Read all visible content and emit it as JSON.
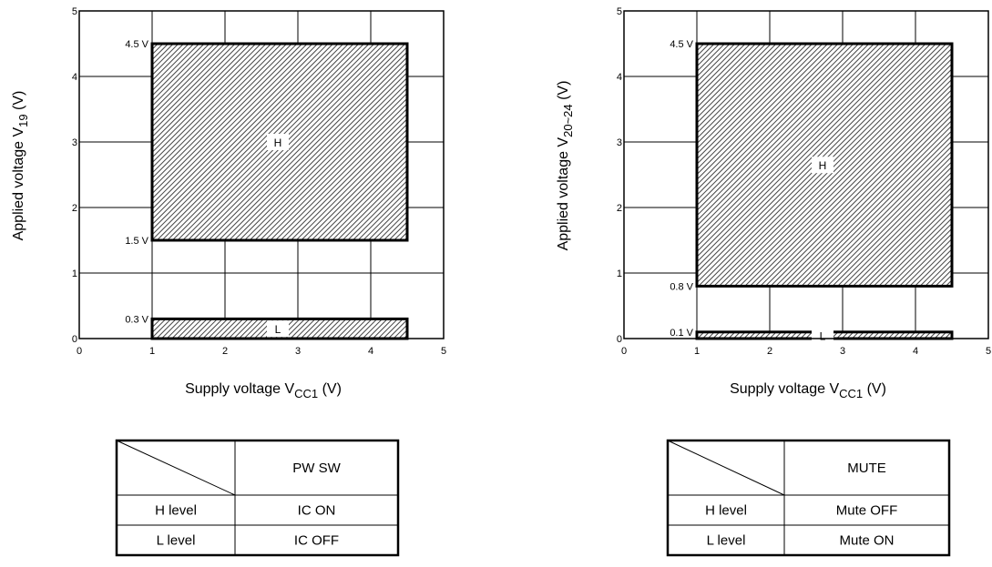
{
  "chart_data": [
    {
      "type": "area",
      "title": "",
      "xlabel": {
        "text": "Supply voltage",
        "symbol": "V",
        "subscript": "CC1",
        "unit": "(V)"
      },
      "ylabel": {
        "text": "Applied voltage",
        "symbol": "V",
        "subscript": "19",
        "unit": "(V)"
      },
      "xlim": [
        0,
        5
      ],
      "ylim": [
        0,
        5
      ],
      "x_ticks": [
        "0",
        "1",
        "2",
        "3",
        "4",
        "5"
      ],
      "y_ticks": [
        "0",
        "1",
        "2",
        "3",
        "4",
        "5"
      ],
      "grid": true,
      "regions": [
        {
          "name": "H",
          "x": [
            1,
            4.5
          ],
          "y": [
            1.5,
            4.5
          ],
          "top_label": "4.5 V",
          "bottom_label": "1.5 V"
        },
        {
          "name": "L",
          "x": [
            1,
            4.5
          ],
          "y": [
            0,
            0.3
          ],
          "top_label": "0.3 V",
          "bottom_label": ""
        }
      ],
      "table": {
        "header": "PW SW",
        "rows": [
          {
            "level": "H level",
            "value": "IC ON"
          },
          {
            "level": "L level",
            "value": "IC OFF"
          }
        ]
      }
    },
    {
      "type": "area",
      "title": "",
      "xlabel": {
        "text": "Supply voltage",
        "symbol": "V",
        "subscript": "CC1",
        "unit": "(V)"
      },
      "ylabel": {
        "text": "Applied voltage",
        "symbol": "V",
        "subscript": "20~24",
        "unit": "(V)"
      },
      "xlim": [
        0,
        5
      ],
      "ylim": [
        0,
        5
      ],
      "x_ticks": [
        "0",
        "1",
        "2",
        "3",
        "4",
        "5"
      ],
      "y_ticks": [
        "0",
        "1",
        "2",
        "3",
        "4",
        "5"
      ],
      "grid": true,
      "regions": [
        {
          "name": "H",
          "x": [
            1,
            4.5
          ],
          "y": [
            0.8,
            4.5
          ],
          "top_label": "4.5 V",
          "bottom_label": "0.8 V"
        },
        {
          "name": "L",
          "x": [
            1,
            4.5
          ],
          "y": [
            0,
            0.1
          ],
          "top_label": "0.1 V",
          "bottom_label": ""
        }
      ],
      "table": {
        "header": "MUTE",
        "rows": [
          {
            "level": "H level",
            "value": "Mute OFF"
          },
          {
            "level": "L level",
            "value": "Mute ON"
          }
        ]
      }
    }
  ]
}
